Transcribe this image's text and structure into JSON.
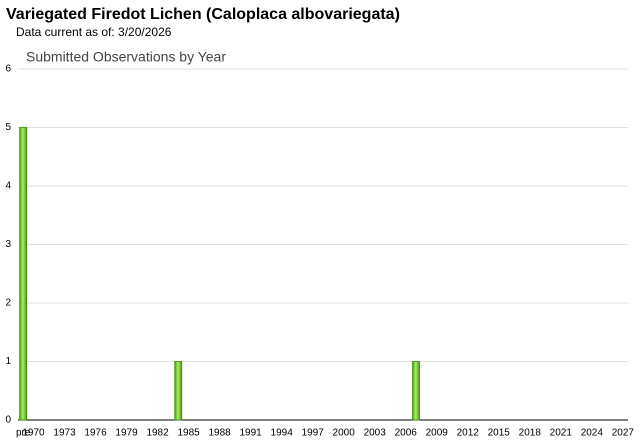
{
  "header": {
    "title": "Variegated Firedot Lichen   (Caloplaca albovariegata)",
    "subtitle": "Data current as of: 3/20/2026"
  },
  "chart_data": {
    "type": "bar",
    "title": "Submitted Observations by Year",
    "categories": [
      "pre",
      "1970",
      null,
      null,
      "1973",
      null,
      null,
      "1976",
      null,
      null,
      "1979",
      null,
      null,
      "1982",
      null,
      null,
      "1985",
      null,
      null,
      "1988",
      null,
      null,
      "1991",
      null,
      null,
      "1994",
      null,
      null,
      "1997",
      null,
      null,
      "2000",
      null,
      null,
      "2003",
      null,
      null,
      "2006",
      null,
      null,
      "2009",
      null,
      null,
      "2012",
      null,
      null,
      "2015",
      null,
      null,
      "2018",
      null,
      null,
      "2021",
      null,
      null,
      "2024",
      null,
      null,
      "2027"
    ],
    "values": [
      5,
      0,
      0,
      0,
      0,
      0,
      0,
      0,
      0,
      0,
      0,
      0,
      0,
      0,
      0,
      1,
      0,
      0,
      0,
      0,
      0,
      0,
      0,
      0,
      0,
      0,
      0,
      0,
      0,
      0,
      0,
      0,
      0,
      0,
      0,
      0,
      0,
      0,
      1,
      0,
      0,
      0,
      0,
      0,
      0,
      0,
      0,
      0,
      0,
      0,
      0,
      0,
      0,
      0,
      0,
      0,
      0,
      0,
      0
    ],
    "color": "#66cc22",
    "ylim": [
      0,
      6
    ],
    "yticks": [
      0,
      1,
      2,
      3,
      4,
      5,
      6
    ],
    "grid": true
  }
}
